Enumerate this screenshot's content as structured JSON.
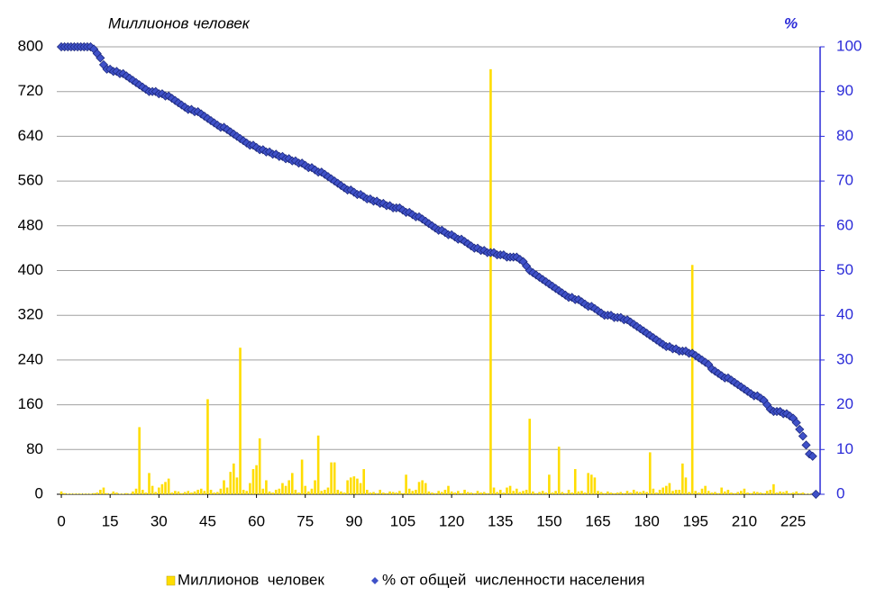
{
  "chart_data": {
    "type": "combo",
    "y_label": "Миллионов человек",
    "y2_label": "%",
    "xlim": [
      -1.4,
      233.3
    ],
    "xticks": [
      0,
      15,
      30,
      45,
      60,
      75,
      90,
      105,
      120,
      135,
      150,
      165,
      180,
      195,
      210,
      225
    ],
    "ylim": [
      0,
      800
    ],
    "yticks": [
      0,
      80,
      160,
      240,
      320,
      400,
      480,
      560,
      640,
      720,
      800
    ],
    "y2lim": [
      0,
      100
    ],
    "y2ticks": [
      0,
      10,
      20,
      30,
      40,
      50,
      60,
      70,
      80,
      90,
      100
    ],
    "grid": true,
    "series": [
      {
        "name": "Миллионов  человек",
        "type": "bar",
        "color": "#ffdd00",
        "values": [
          5,
          2,
          1,
          1,
          1,
          1,
          1,
          1,
          1,
          1,
          2,
          3,
          8,
          12,
          2,
          1,
          5,
          3,
          1,
          1,
          2,
          1,
          5,
          10,
          120,
          8,
          3,
          38,
          15,
          4,
          12,
          18,
          22,
          28,
          3,
          6,
          5,
          2,
          4,
          6,
          3,
          5,
          8,
          10,
          6,
          170,
          8,
          3,
          4,
          10,
          25,
          12,
          40,
          55,
          30,
          262,
          8,
          6,
          20,
          45,
          52,
          100,
          10,
          25,
          5,
          3,
          8,
          10,
          20,
          15,
          25,
          38,
          8,
          3,
          62,
          15,
          5,
          10,
          25,
          105,
          6,
          8,
          12,
          57,
          57,
          8,
          5,
          3,
          25,
          30,
          32,
          28,
          20,
          45,
          8,
          3,
          4,
          2,
          8,
          3,
          2,
          5,
          4,
          3,
          6,
          2,
          35,
          10,
          6,
          8,
          22,
          25,
          20,
          5,
          3,
          2,
          6,
          4,
          8,
          15,
          5,
          3,
          6,
          2,
          8,
          4,
          3,
          2,
          6,
          3,
          4,
          2,
          760,
          12,
          4,
          8,
          3,
          12,
          15,
          6,
          10,
          4,
          6,
          8,
          135,
          5,
          2,
          4,
          6,
          3,
          35,
          3,
          6,
          85,
          4,
          2,
          8,
          3,
          45,
          5,
          6,
          3,
          38,
          35,
          30,
          6,
          4,
          2,
          5,
          3,
          2,
          3,
          4,
          2,
          6,
          3,
          8,
          5,
          4,
          6,
          4,
          75,
          10,
          3,
          8,
          12,
          15,
          20,
          6,
          8,
          8,
          55,
          30,
          4,
          410,
          6,
          3,
          10,
          15,
          6,
          3,
          4,
          2,
          12,
          5,
          8,
          3,
          2,
          4,
          6,
          10,
          3,
          2,
          5,
          4,
          3,
          2,
          6,
          8,
          18,
          3,
          5,
          4,
          6,
          2,
          3,
          5,
          2,
          3,
          1,
          1,
          2,
          0
        ]
      },
      {
        "name": "% от общей  численности населения",
        "type": "scatter",
        "axis": "y2",
        "color": "#3f51c8",
        "values": [
          100,
          100,
          100,
          100,
          100,
          100,
          100,
          100,
          100,
          100,
          99.5,
          98.5,
          97.5,
          96,
          95,
          95,
          94.5,
          94.5,
          94,
          94,
          93.5,
          93,
          92.5,
          92,
          91.5,
          91,
          90.5,
          90,
          90,
          90,
          89.5,
          89.5,
          89,
          89,
          88.5,
          88,
          87.5,
          87,
          86.5,
          86,
          86,
          85.5,
          85.5,
          85,
          84.5,
          84,
          83.5,
          83,
          82.5,
          82,
          82,
          81.5,
          81,
          80.5,
          80,
          79.5,
          79,
          78.5,
          78,
          78,
          77.5,
          77,
          77,
          76.5,
          76.5,
          76,
          76,
          75.5,
          75.5,
          75,
          75,
          74.5,
          74.5,
          74,
          74,
          73.5,
          73,
          73,
          72.5,
          72,
          72,
          71.5,
          71,
          70.5,
          70,
          69.5,
          69,
          68.5,
          68,
          68,
          67.5,
          67,
          67,
          66.5,
          66,
          66,
          65.5,
          65.5,
          65,
          65,
          64.5,
          64.5,
          64,
          64,
          64,
          63.5,
          63,
          63,
          62.5,
          62,
          62,
          61.5,
          61,
          60.5,
          60,
          59.5,
          59,
          59,
          58.5,
          58,
          58,
          57.5,
          57,
          57,
          56.5,
          56,
          55.5,
          55,
          55,
          54.5,
          54.5,
          54,
          54,
          54,
          53.5,
          53.5,
          53.5,
          53,
          53,
          53,
          53,
          52.5,
          52,
          51,
          50,
          49.5,
          49,
          48.5,
          48,
          47.5,
          47,
          46.5,
          46,
          45.5,
          45,
          44.5,
          44,
          44,
          43.5,
          43.5,
          43,
          42.5,
          42,
          42,
          41.5,
          41,
          40.5,
          40,
          40,
          40,
          39.5,
          39.5,
          39.5,
          39,
          39,
          38.5,
          38,
          37.5,
          37,
          36.5,
          36,
          35.5,
          35,
          34.5,
          34,
          33.5,
          33,
          33,
          32.5,
          32.5,
          32,
          32,
          32,
          31.5,
          31.5,
          31,
          30.5,
          30,
          29.5,
          29,
          28,
          27.5,
          27,
          26.5,
          26,
          26,
          25.5,
          25,
          24.5,
          24,
          23.5,
          23,
          22.5,
          22,
          22,
          21.5,
          21,
          20,
          19,
          18.5,
          18.5,
          18.5,
          18,
          18,
          17.5,
          17,
          16,
          14.5,
          13,
          11,
          9,
          8.5,
          0
        ]
      }
    ]
  }
}
